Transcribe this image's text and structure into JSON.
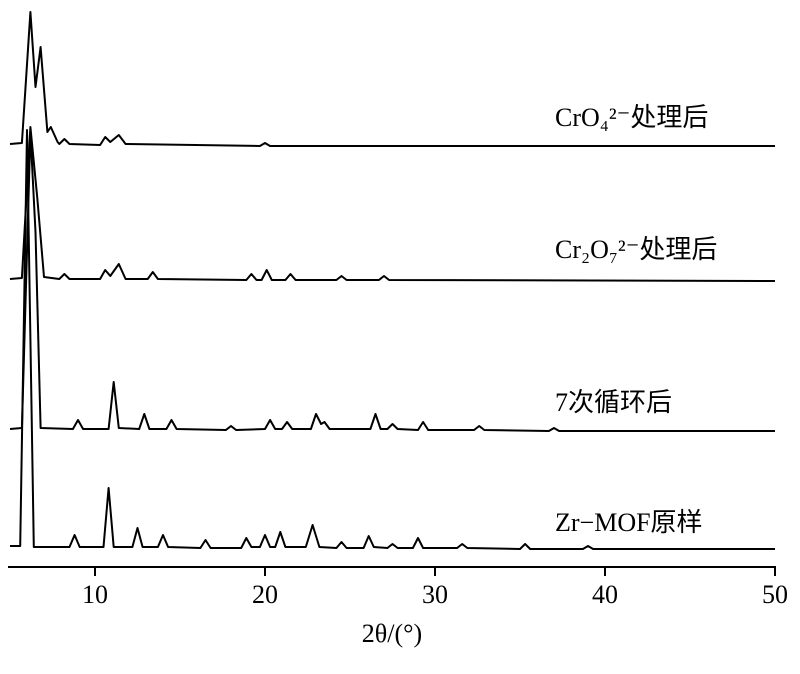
{
  "chart_data": {
    "type": "line",
    "xlabel": "2θ/(°)",
    "xlim": [
      5,
      50
    ],
    "xticks": [
      10,
      20,
      30,
      40,
      50
    ],
    "series": [
      {
        "name": "Zr−MOF原样",
        "color": "#000000",
        "x": [
          5,
          5.6,
          6.0,
          6.4,
          8.5,
          8.8,
          9.1,
          10.5,
          10.8,
          11.1,
          12.2,
          12.5,
          12.8,
          13.7,
          14.0,
          14.3,
          16.2,
          16.5,
          16.8,
          18.6,
          18.9,
          19.2,
          19.7,
          20.0,
          20.3,
          20.6,
          20.9,
          21.2,
          22.4,
          22.8,
          23.2,
          24.2,
          24.5,
          24.8,
          25.8,
          26.1,
          26.4,
          27.2,
          27.5,
          27.8,
          28.7,
          29.0,
          29.3,
          31.3,
          31.6,
          31.9,
          35.0,
          35.3,
          35.6,
          38.7,
          39.0,
          39.3,
          50
        ],
        "values": [
          4,
          4,
          420,
          3,
          3,
          15,
          3,
          3,
          62,
          3,
          3,
          22,
          3,
          3,
          15,
          3,
          2,
          10,
          2,
          2,
          12,
          3,
          3,
          15,
          3,
          3,
          18,
          3,
          3,
          25,
          3,
          2,
          8,
          2,
          2,
          14,
          3,
          2,
          6,
          2,
          2,
          12,
          2,
          2,
          6,
          2,
          1,
          6,
          1,
          1,
          4,
          1,
          1
        ]
      },
      {
        "name": "7次循环后",
        "color": "#000000",
        "x": [
          5,
          5.7,
          6.2,
          6.5,
          6.8,
          8.7,
          9.0,
          9.3,
          10.8,
          11.1,
          11.4,
          12.6,
          12.9,
          13.2,
          14.2,
          14.5,
          14.8,
          17.7,
          18.0,
          18.3,
          20.0,
          20.3,
          20.6,
          21.0,
          21.3,
          21.6,
          22.7,
          23.0,
          23.3,
          23.5,
          23.8,
          26.2,
          26.5,
          26.8,
          27.2,
          27.5,
          27.8,
          29.0,
          29.3,
          29.6,
          32.3,
          32.6,
          32.9,
          36.7,
          37.0,
          37.3,
          50
        ],
        "values": [
          3,
          4,
          300,
          200,
          4,
          3,
          12,
          3,
          3,
          50,
          4,
          3,
          18,
          3,
          3,
          12,
          3,
          2,
          6,
          2,
          3,
          12,
          3,
          3,
          10,
          3,
          3,
          18,
          8,
          10,
          3,
          3,
          18,
          3,
          3,
          8,
          3,
          2,
          10,
          2,
          2,
          6,
          2,
          1,
          4,
          1,
          1
        ]
      },
      {
        "name": "Cr₂O₇²⁻处理后",
        "color": "#000000",
        "x": [
          5,
          5.7,
          6.2,
          6.6,
          7.0,
          7.9,
          8.2,
          8.5,
          10.3,
          10.6,
          10.9,
          11.4,
          11.8,
          13.1,
          13.4,
          13.7,
          18.9,
          19.2,
          19.5,
          19.8,
          20.1,
          20.4,
          21.2,
          21.5,
          21.8,
          24.2,
          24.5,
          24.8,
          26.7,
          27.0,
          27.3,
          50
        ],
        "values": [
          3,
          4,
          155,
          85,
          5,
          3,
          8,
          3,
          3,
          12,
          6,
          18,
          3,
          3,
          10,
          3,
          2,
          8,
          2,
          2,
          12,
          2,
          2,
          8,
          2,
          2,
          6,
          2,
          2,
          6,
          2,
          1
        ]
      },
      {
        "name": "CrO₄²⁻处理后",
        "color": "#000000",
        "x": [
          5,
          5.7,
          6.2,
          6.5,
          6.8,
          7.2,
          7.4,
          7.8,
          7.9,
          8.2,
          8.5,
          10.3,
          10.6,
          10.9,
          11.4,
          11.8,
          19.7,
          20.0,
          20.3,
          50
        ],
        "values": [
          3,
          4,
          135,
          60,
          100,
          15,
          20,
          5,
          3,
          8,
          3,
          2,
          10,
          5,
          12,
          3,
          1,
          4,
          1,
          1
        ]
      }
    ]
  }
}
